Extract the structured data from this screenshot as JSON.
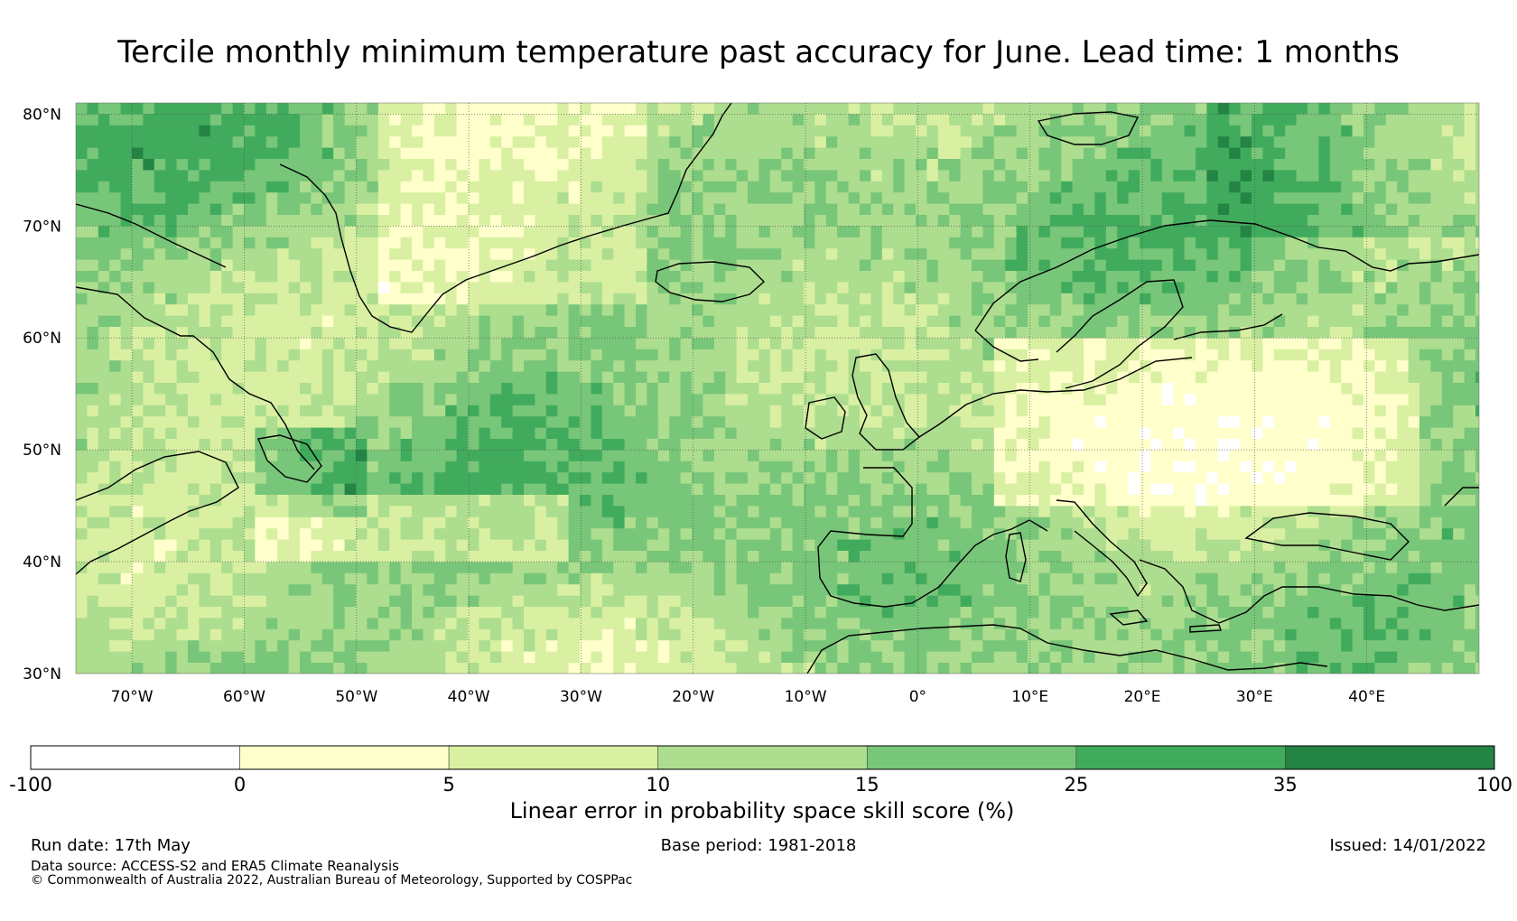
{
  "title": "Tercile monthly minimum temperature past accuracy for June. Lead time: 1 months",
  "map": {
    "lat_labels": [
      "80°N",
      "70°N",
      "60°N",
      "50°N",
      "40°N",
      "30°N"
    ],
    "lon_labels": [
      "70°W",
      "60°W",
      "50°W",
      "40°W",
      "30°W",
      "20°W",
      "10°W",
      "0°",
      "10°E",
      "20°E",
      "30°E",
      "40°E"
    ],
    "extent": {
      "lon_min": -75,
      "lon_max": 50,
      "lat_min": 30,
      "lat_max": 81
    }
  },
  "colorbar": {
    "title": "Linear error in probability space skill score (%)",
    "ticks": [
      "-100",
      "0",
      "5",
      "10",
      "15",
      "25",
      "35",
      "100"
    ],
    "colors": [
      "#ffffff",
      "#ffffcc",
      "#d9f0a3",
      "#addd8e",
      "#78c679",
      "#41ab5d",
      "#238443"
    ]
  },
  "footer": {
    "run_date": "Run date: 17th May",
    "base_period": "Base period: 1981-2018",
    "issued": "Issued: 14/01/2022",
    "data_source": "Data source: ACCESS-S2 and ERA5 Climate Reanalysis",
    "copyright": "© Commonwealth of Australia 2022, Australian Bureau of Meteorology, Supported by COSPPac"
  }
}
